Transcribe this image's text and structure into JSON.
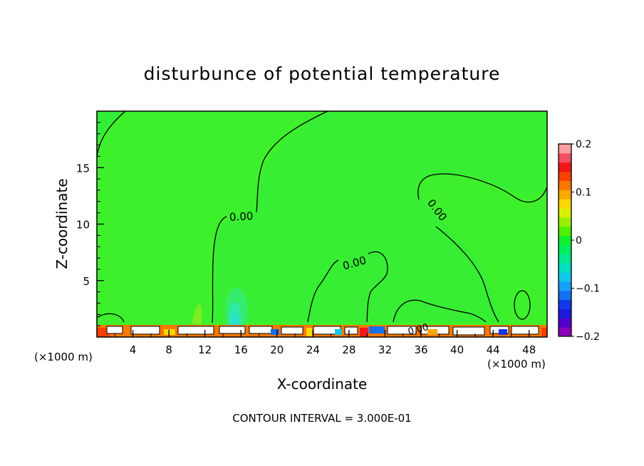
{
  "chart_data": {
    "type": "heatmap",
    "title": "disturbunce of potential temperature",
    "xlabel": "X-coordinate",
    "ylabel": "Z-coordinate",
    "x_unit_left": "(×1000 m)",
    "x_unit_right": "(×1000 m)",
    "xlim": [
      0,
      50
    ],
    "ylim": [
      0,
      20
    ],
    "x_ticks": [
      4,
      8,
      12,
      16,
      20,
      24,
      28,
      32,
      36,
      40,
      44,
      48
    ],
    "y_ticks": [
      5,
      10,
      15
    ],
    "contour_labels": [
      "0.00",
      "0.00",
      "0.00",
      "0.00"
    ],
    "footer": "CONTOUR INTERVAL = 3.000E-01",
    "colorbar": {
      "ticks": [
        "0.2",
        "0.1",
        "0",
        "−0.1",
        "−0.2"
      ],
      "vmin": -0.2,
      "vmax": 0.2,
      "colors": [
        "#8a00b8",
        "#5000c8",
        "#1c1cd8",
        "#1238e8",
        "#1470f0",
        "#18a0f8",
        "#10c8e8",
        "#00e0c0",
        "#00e890",
        "#00ec60",
        "#10f030",
        "#50f000",
        "#98f000",
        "#d8f000",
        "#f8d800",
        "#f8a800",
        "#f87800",
        "#f84000",
        "#f01818",
        "#f05060",
        "#f8a0a0"
      ]
    },
    "background_value_color": "#3ef02c"
  }
}
